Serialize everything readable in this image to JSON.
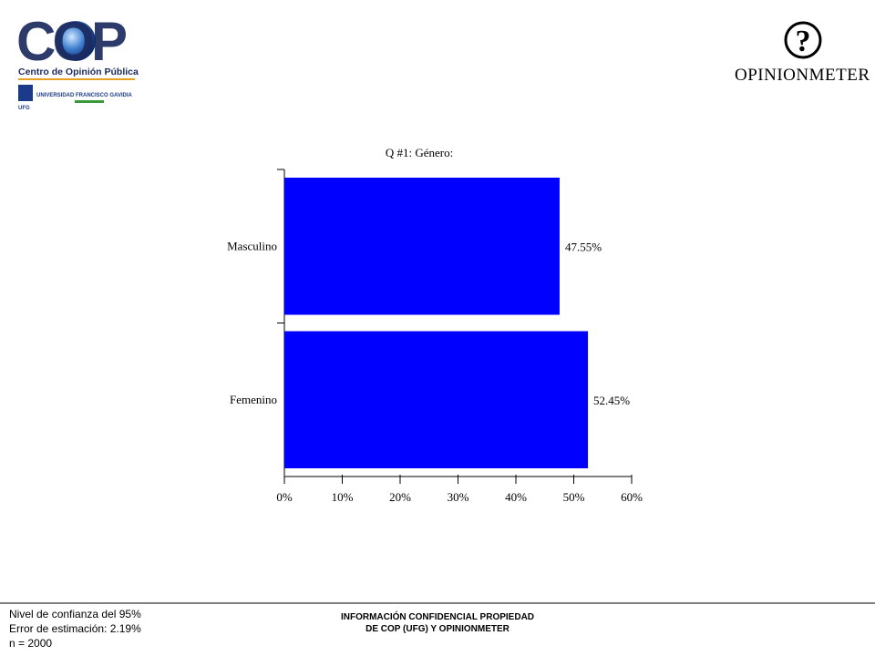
{
  "header": {
    "logo": "COP",
    "org": "Centro de Opinión Pública",
    "university": "UNIVERSIDAD FRANCISCO GAVIDIA",
    "university_short": "UFG",
    "partner_icon": "?",
    "partner": "OPINIONMETER"
  },
  "chart_data": {
    "type": "hbar",
    "title": "Q #1: Género:",
    "categories": [
      "Masculino",
      "Femenino"
    ],
    "values": [
      47.55,
      52.45
    ],
    "value_labels": [
      "47.55%",
      "52.45%"
    ],
    "color": "#0000ff",
    "xlim": [
      0,
      60
    ],
    "xticks": [
      {
        "value": 0,
        "label": "0%"
      },
      {
        "value": 10,
        "label": "10%"
      },
      {
        "value": 20,
        "label": "20%"
      },
      {
        "value": 30,
        "label": "30%"
      },
      {
        "value": 40,
        "label": "40%"
      },
      {
        "value": 50,
        "label": "50%"
      },
      {
        "value": 60,
        "label": "60%"
      }
    ]
  },
  "footer": {
    "stats": [
      "Nivel de confianza del 95%",
      "Error de estimación: 2.19%",
      "n = 2000"
    ],
    "notice": [
      "INFORMACIÓN CONFIDENCIAL PROPIEDAD",
      "DE COP (UFG) Y OPINIONMETER"
    ]
  }
}
